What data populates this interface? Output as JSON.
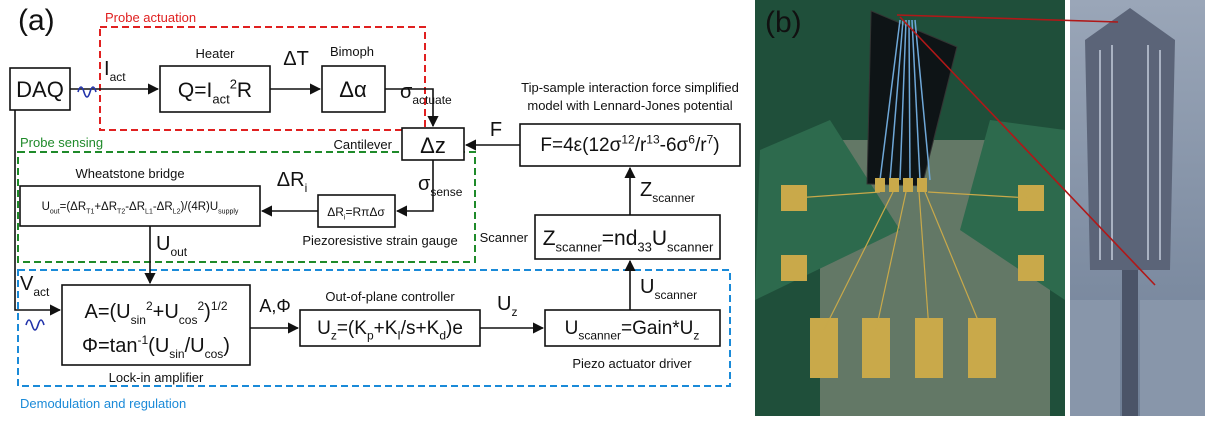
{
  "panel_a": {
    "label": "(a)",
    "regions": {
      "actuation": "Probe actuation",
      "sensing": "Probe sensing",
      "regulation": "Demodulation and regulation"
    },
    "daq": "DAQ",
    "i_act": [
      "I",
      "act"
    ],
    "heater_label": "Heater",
    "heater_eq": [
      "Q=I",
      "act",
      "2",
      "R"
    ],
    "delta_t": "ΔT",
    "bimorph_label": "Bimoph",
    "bimorph_eq": "Δα",
    "sigma_actuate": [
      "σ",
      "actuate"
    ],
    "cantilever_label": "Cantilever",
    "cantilever_eq": "Δz",
    "force_label": "F",
    "force_title": [
      "Tip-sample interaction force simplified",
      "model with Lennard-Jones potential"
    ],
    "force_eq": [
      "F=4ε(12σ",
      "12",
      "/r",
      "13",
      "-6σ",
      "6",
      "/r",
      "7",
      ")"
    ],
    "sigma_sense": [
      "σ",
      "sense"
    ],
    "gauge_eq": [
      "ΔR",
      "i",
      "=RπΔσ"
    ],
    "gauge_label": "Piezoresistive strain gauge",
    "delta_ri": [
      "ΔR",
      "i"
    ],
    "bridge_label": "Wheatstone bridge",
    "bridge_eq": [
      "U",
      "out",
      "=(ΔR",
      "T1",
      "+ΔR",
      "T2",
      "-ΔR",
      "L1",
      "-ΔR",
      "L2",
      ")/(4R)U",
      "supply"
    ],
    "u_out": [
      "U",
      "out"
    ],
    "v_act": [
      "V",
      "act"
    ],
    "lockin_eq1": [
      "A=(U",
      "sin",
      "2",
      "+U",
      "cos",
      "2",
      ")",
      "1/2"
    ],
    "lockin_eq2": [
      "Φ=tan",
      "-1",
      "(U",
      "sin",
      "/U",
      "cos",
      ")"
    ],
    "lockin_label": "Lock-in amplifier",
    "a_phi": "A,Φ",
    "controller_label": "Out-of-plane controller",
    "controller_eq": [
      "U",
      "z",
      "=(K",
      "p",
      "+K",
      "I",
      "/s+K",
      "d",
      ")e"
    ],
    "u_z": [
      "U",
      "z"
    ],
    "driver_eq": [
      "U",
      "scanner",
      "=Gain*U",
      "z"
    ],
    "driver_label": "Piezo actuator driver",
    "u_scanner": [
      "U",
      "scanner"
    ],
    "scanner_label": "Scanner",
    "scanner_eq": [
      "Z",
      "scanner",
      "=nd",
      "33",
      "U",
      "scanner"
    ],
    "z_scanner": [
      "Z",
      "scanner"
    ]
  },
  "panel_b": {
    "label": "(b)"
  }
}
